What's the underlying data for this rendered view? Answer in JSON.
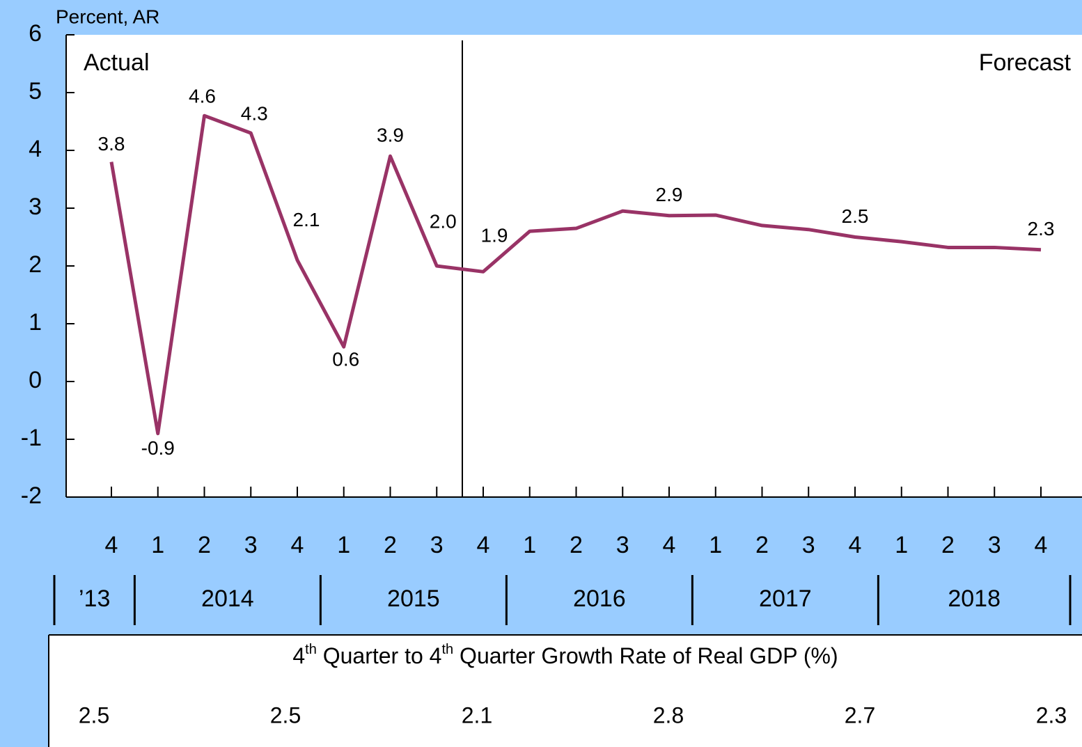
{
  "chart_data": {
    "type": "line",
    "y_axis_label": "Percent, AR",
    "annotations": [
      "Actual",
      "Forecast"
    ],
    "categories": [
      "4",
      "1",
      "2",
      "3",
      "4",
      "1",
      "2",
      "3",
      "4",
      "1",
      "2",
      "3",
      "4",
      "1",
      "2",
      "3",
      "4",
      "1",
      "2",
      "3",
      "4"
    ],
    "years": [
      "’13",
      "2014",
      "2015",
      "2016",
      "2017",
      "2018"
    ],
    "series": [
      {
        "name": "Real GDP growth",
        "color": "#993366",
        "values": [
          3.8,
          -0.9,
          4.6,
          4.3,
          2.1,
          0.6,
          3.9,
          2.0,
          1.9,
          2.6,
          2.65,
          2.95,
          2.87,
          2.88,
          2.7,
          2.63,
          2.5,
          2.42,
          2.32,
          2.32,
          2.28
        ],
        "value_labels": [
          "3.8",
          "-0.9",
          "4.6",
          "4.3",
          "2.1",
          "0.6",
          "3.9",
          "2.0",
          "1.9",
          null,
          null,
          null,
          "2.9",
          null,
          null,
          null,
          "2.5",
          null,
          null,
          null,
          "2.3"
        ]
      }
    ],
    "ylim": [
      -2,
      6
    ],
    "yticks": [
      -2,
      -1,
      0,
      1,
      2,
      3,
      4,
      5,
      6
    ],
    "table": {
      "title_parts": [
        "4",
        "th",
        " Quarter to 4",
        "th",
        " Quarter Growth Rate of Real GDP (%)"
      ],
      "values": [
        2.5,
        2.5,
        2.1,
        2.8,
        2.7,
        2.3
      ]
    }
  }
}
